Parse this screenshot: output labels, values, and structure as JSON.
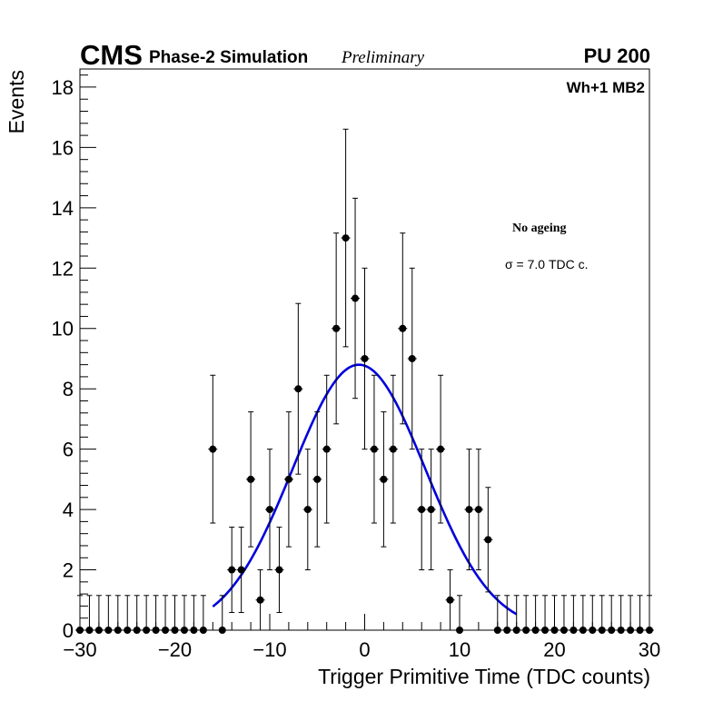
{
  "header": {
    "cms": "CMS",
    "phase": "Phase-2 Simulation",
    "preliminary": "Preliminary",
    "pileup": "PU 200"
  },
  "chart_data": {
    "type": "scatter",
    "title": "",
    "xlabel": "Trigger Primitive Time (TDC counts)",
    "ylabel": "Events",
    "xlim": [
      -30,
      30
    ],
    "ylim": [
      0,
      18.6
    ],
    "xticks": [
      -30,
      -20,
      -10,
      0,
      10,
      20,
      30
    ],
    "xtick_labels": [
      "−30",
      "−20",
      "−10",
      "0",
      "10",
      "20",
      "30"
    ],
    "yticks": [
      0,
      2,
      4,
      6,
      8,
      10,
      12,
      14,
      16,
      18
    ],
    "ytick_labels": [
      "0",
      "2",
      "4",
      "6",
      "8",
      "10",
      "12",
      "14",
      "16",
      "18"
    ],
    "grid": false,
    "series": [
      {
        "name": "Data",
        "color": "#000000",
        "x": [
          -30,
          -29,
          -28,
          -27,
          -26,
          -25,
          -24,
          -23,
          -22,
          -21,
          -20,
          -19,
          -18,
          -17,
          -16,
          -15,
          -14,
          -13,
          -12,
          -11,
          -10,
          -9,
          -8,
          -7,
          -6,
          -5,
          -4,
          -3,
          -2,
          -1,
          0,
          1,
          2,
          3,
          4,
          5,
          6,
          7,
          8,
          9,
          10,
          11,
          12,
          13,
          14,
          15,
          16,
          17,
          18,
          19,
          20,
          21,
          22,
          23,
          24,
          25,
          26,
          27,
          28,
          29,
          30
        ],
        "values": [
          0,
          0,
          0,
          0,
          0,
          0,
          0,
          0,
          0,
          0,
          0,
          0,
          0,
          0,
          6,
          0,
          2,
          2,
          5,
          1,
          4,
          2,
          5,
          8,
          4,
          5,
          6,
          10,
          13,
          11,
          9,
          6,
          5,
          6,
          10,
          9,
          4,
          4,
          6,
          1,
          0,
          4,
          4,
          3,
          0,
          0,
          0,
          0,
          0,
          0,
          0,
          0,
          0,
          0,
          0,
          0,
          0,
          0,
          0,
          0,
          0
        ],
        "errors": "sqrt(N) per bin; empty bins drawn with upper error 1.15"
      },
      {
        "name": "Gaussian fit",
        "type": "line",
        "color": "#0000dd",
        "mean": -0.6,
        "sigma": 7.0,
        "amplitude": 8.8
      }
    ],
    "annotations": {
      "region": "Wh+1 MB2",
      "condition": "No ageing",
      "sigma": "σ = 7.0 TDC c."
    }
  }
}
